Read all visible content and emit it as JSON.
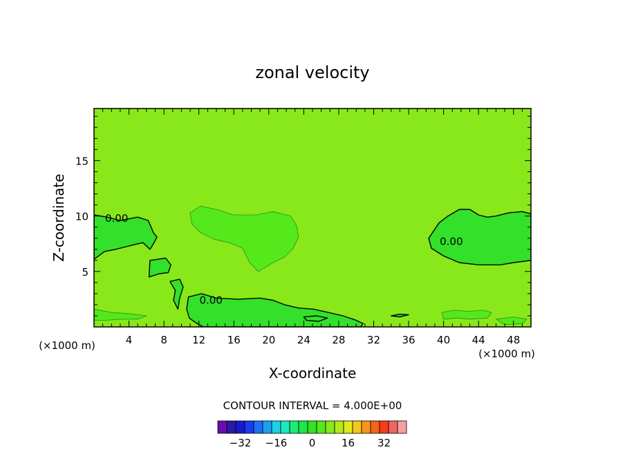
{
  "chart_data": {
    "type": "heatmap",
    "subtype": "filled-contour",
    "title": "zonal velocity",
    "xlabel": "X-coordinate",
    "ylabel": "Z-coordinate",
    "x_unit_left": "(×1000 m)",
    "x_unit_right": "(×1000 m)",
    "xlim": [
      0,
      50
    ],
    "ylim": [
      0,
      19.7
    ],
    "x_ticks": [
      4,
      8,
      12,
      16,
      20,
      24,
      28,
      32,
      36,
      40,
      44,
      48
    ],
    "y_ticks": [
      5,
      10,
      15
    ],
    "contour_interval_text": "CONTOUR INTERVAL = 4.000E+00",
    "contour_labels": [
      "0.00",
      "0.00",
      "0.00"
    ],
    "background_level": 2,
    "colorbar": {
      "tick_labels": [
        "−32",
        "−16",
        "0",
        "16",
        "32"
      ],
      "tick_values": [
        -32,
        -16,
        0,
        16,
        32
      ],
      "levels": [
        -40,
        -36,
        -32,
        -28,
        -24,
        -20,
        -16,
        -12,
        -8,
        -4,
        0,
        4,
        8,
        12,
        16,
        20,
        24,
        28,
        32,
        36,
        40
      ],
      "colors": [
        "#6a0dad",
        "#2a1aa8",
        "#1a1acd",
        "#1a3cf0",
        "#1e6ff5",
        "#1aa0f0",
        "#1ad0e8",
        "#1ae8c0",
        "#1aeb7a",
        "#1ae84a",
        "#33e02a",
        "#55e81a",
        "#88e81a",
        "#b4e81a",
        "#e0e81a",
        "#f0c81a",
        "#f5961a",
        "#f5641a",
        "#f53c1a",
        "#f06464",
        "#f5a0a0"
      ]
    },
    "regions": [
      {
        "level": 0,
        "label": "0.00",
        "polygon": [
          [
            0,
            10.1
          ],
          [
            1.5,
            9.9
          ],
          [
            3,
            9.6
          ],
          [
            5,
            9.9
          ],
          [
            6.2,
            9.6
          ],
          [
            6.8,
            8.5
          ],
          [
            7.2,
            8.1
          ],
          [
            6.8,
            7.5
          ],
          [
            6.4,
            7.0
          ],
          [
            5.6,
            7.6
          ],
          [
            4.5,
            7.4
          ],
          [
            3.5,
            7.2
          ],
          [
            2.5,
            7.0
          ],
          [
            1.2,
            6.8
          ],
          [
            0,
            6.1
          ]
        ]
      },
      {
        "level": 0,
        "polygon": [
          [
            6.4,
            6.0
          ],
          [
            8.2,
            6.2
          ],
          [
            8.8,
            5.6
          ],
          [
            8.5,
            4.9
          ],
          [
            7.5,
            4.8
          ],
          [
            6.3,
            4.5
          ]
        ]
      },
      {
        "level": 0,
        "polygon": [
          [
            8.7,
            4.1
          ],
          [
            9.8,
            4.3
          ],
          [
            10.2,
            3.6
          ],
          [
            9.8,
            2.6
          ],
          [
            9.6,
            1.6
          ],
          [
            9.1,
            2.4
          ],
          [
            9.3,
            3.3
          ],
          [
            8.9,
            3.8
          ]
        ]
      },
      {
        "level": 0,
        "label": "0.00",
        "polygon": [
          [
            10.8,
            2.7
          ],
          [
            12.3,
            3.0
          ],
          [
            14.0,
            2.6
          ],
          [
            16.5,
            2.5
          ],
          [
            19.0,
            2.6
          ],
          [
            20.5,
            2.4
          ],
          [
            21.8,
            2.0
          ],
          [
            23.4,
            1.7
          ],
          [
            25.1,
            1.6
          ],
          [
            26.8,
            1.3
          ],
          [
            28.5,
            1.0
          ],
          [
            30.0,
            0.6
          ],
          [
            30.8,
            0.3
          ],
          [
            30.5,
            0
          ],
          [
            12.5,
            0
          ],
          [
            11.6,
            0.4
          ],
          [
            10.9,
            0.8
          ],
          [
            10.6,
            1.6
          ]
        ]
      },
      {
        "level": 0,
        "label": "0.00",
        "polygon": [
          [
            38.3,
            8.0
          ],
          [
            39.5,
            9.4
          ],
          [
            40.5,
            10.0
          ],
          [
            41.8,
            10.6
          ],
          [
            43.0,
            10.6
          ],
          [
            44.0,
            10.1
          ],
          [
            45.0,
            9.9
          ],
          [
            46.0,
            10.0
          ],
          [
            47.5,
            10.3
          ],
          [
            49.0,
            10.4
          ],
          [
            50,
            10.2
          ],
          [
            50,
            6.0
          ],
          [
            48.0,
            5.8
          ],
          [
            46.5,
            5.6
          ],
          [
            44.0,
            5.6
          ],
          [
            41.8,
            5.8
          ],
          [
            40.0,
            6.4
          ],
          [
            38.6,
            7.1
          ]
        ]
      },
      {
        "level": 0,
        "polygon": [
          [
            24.0,
            0.9
          ],
          [
            25.5,
            1.0
          ],
          [
            26.7,
            0.8
          ],
          [
            25.7,
            0.5
          ],
          [
            24.3,
            0.6
          ]
        ]
      },
      {
        "level": 0,
        "polygon": [
          [
            34.0,
            1.0
          ],
          [
            35.0,
            1.15
          ],
          [
            36.0,
            1.1
          ],
          [
            35.0,
            0.9
          ]
        ]
      },
      {
        "level": 1,
        "polygon": [
          [
            11.0,
            10.3
          ],
          [
            12.2,
            10.9
          ],
          [
            14.0,
            10.6
          ],
          [
            16.0,
            10.1
          ],
          [
            18.5,
            10.1
          ],
          [
            20.5,
            10.4
          ],
          [
            22.5,
            10.0
          ],
          [
            23.2,
            9.1
          ],
          [
            23.4,
            8.1
          ],
          [
            22.8,
            7.1
          ],
          [
            21.8,
            6.3
          ],
          [
            20.5,
            5.8
          ],
          [
            18.8,
            5.0
          ],
          [
            17.8,
            5.8
          ],
          [
            17.0,
            7.1
          ],
          [
            15.5,
            7.6
          ],
          [
            13.8,
            7.9
          ],
          [
            12.2,
            8.5
          ],
          [
            11.2,
            9.3
          ]
        ]
      },
      {
        "level": 1,
        "polygon": [
          [
            0,
            1.6
          ],
          [
            2.0,
            1.3
          ],
          [
            4.0,
            1.2
          ],
          [
            6.0,
            1.0
          ],
          [
            5.0,
            0.7
          ],
          [
            3.0,
            0.7
          ],
          [
            1.5,
            0.6
          ],
          [
            0,
            0.6
          ]
        ]
      },
      {
        "level": 1,
        "polygon": [
          [
            39.8,
            1.3
          ],
          [
            41.2,
            1.5
          ],
          [
            42.8,
            1.4
          ],
          [
            44.5,
            1.5
          ],
          [
            45.5,
            1.3
          ],
          [
            45.0,
            0.8
          ],
          [
            43.0,
            0.7
          ],
          [
            41.5,
            0.8
          ],
          [
            40.0,
            0.7
          ]
        ]
      },
      {
        "level": 1,
        "polygon": [
          [
            46.0,
            0.7
          ],
          [
            48.0,
            0.9
          ],
          [
            49.5,
            0.7
          ],
          [
            49.0,
            0.3
          ],
          [
            47.0,
            0.2
          ]
        ]
      }
    ]
  }
}
